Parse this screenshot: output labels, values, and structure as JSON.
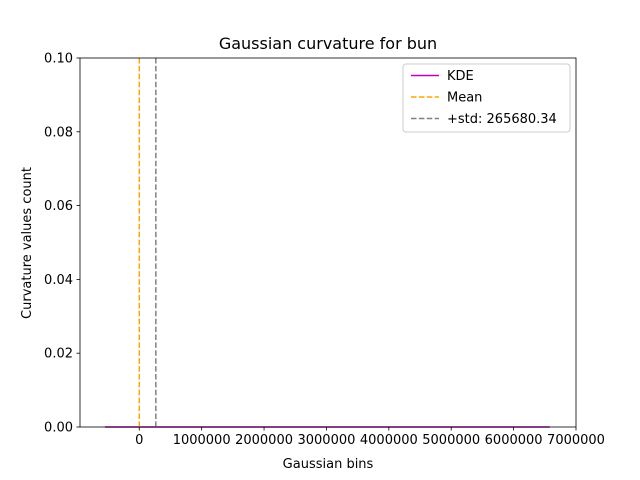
{
  "chart_data": {
    "type": "line",
    "title": "Gaussian curvature for bun",
    "xlabel": "Gaussian bins",
    "ylabel": "Curvature values count",
    "xlim": [
      -950000,
      7000000
    ],
    "ylim": [
      0,
      0.1
    ],
    "x_ticks": [
      0,
      1000000,
      2000000,
      3000000,
      4000000,
      5000000,
      6000000,
      7000000
    ],
    "x_tick_labels": [
      "0",
      "1000000",
      "2000000",
      "3000000",
      "4000000",
      "5000000",
      "6000000",
      "7000000"
    ],
    "y_ticks": [
      0,
      0.02,
      0.04,
      0.06,
      0.08,
      0.1
    ],
    "y_tick_labels": [
      "0.00",
      "0.02",
      "0.04",
      "0.06",
      "0.08",
      "0.10"
    ],
    "grid": false,
    "legend_position": "top-right",
    "series": [
      {
        "name": "KDE",
        "style": "solid",
        "color": "#bf00bf",
        "x": [
          -550000,
          6580000
        ],
        "y": [
          0,
          0
        ]
      }
    ],
    "vlines": [
      {
        "name": "Mean",
        "style": "dashed",
        "color": "#ffa500",
        "x": 0
      },
      {
        "name": "+std: 265680.34",
        "style": "dashed",
        "color": "#808080",
        "x": 265680.34
      }
    ]
  }
}
